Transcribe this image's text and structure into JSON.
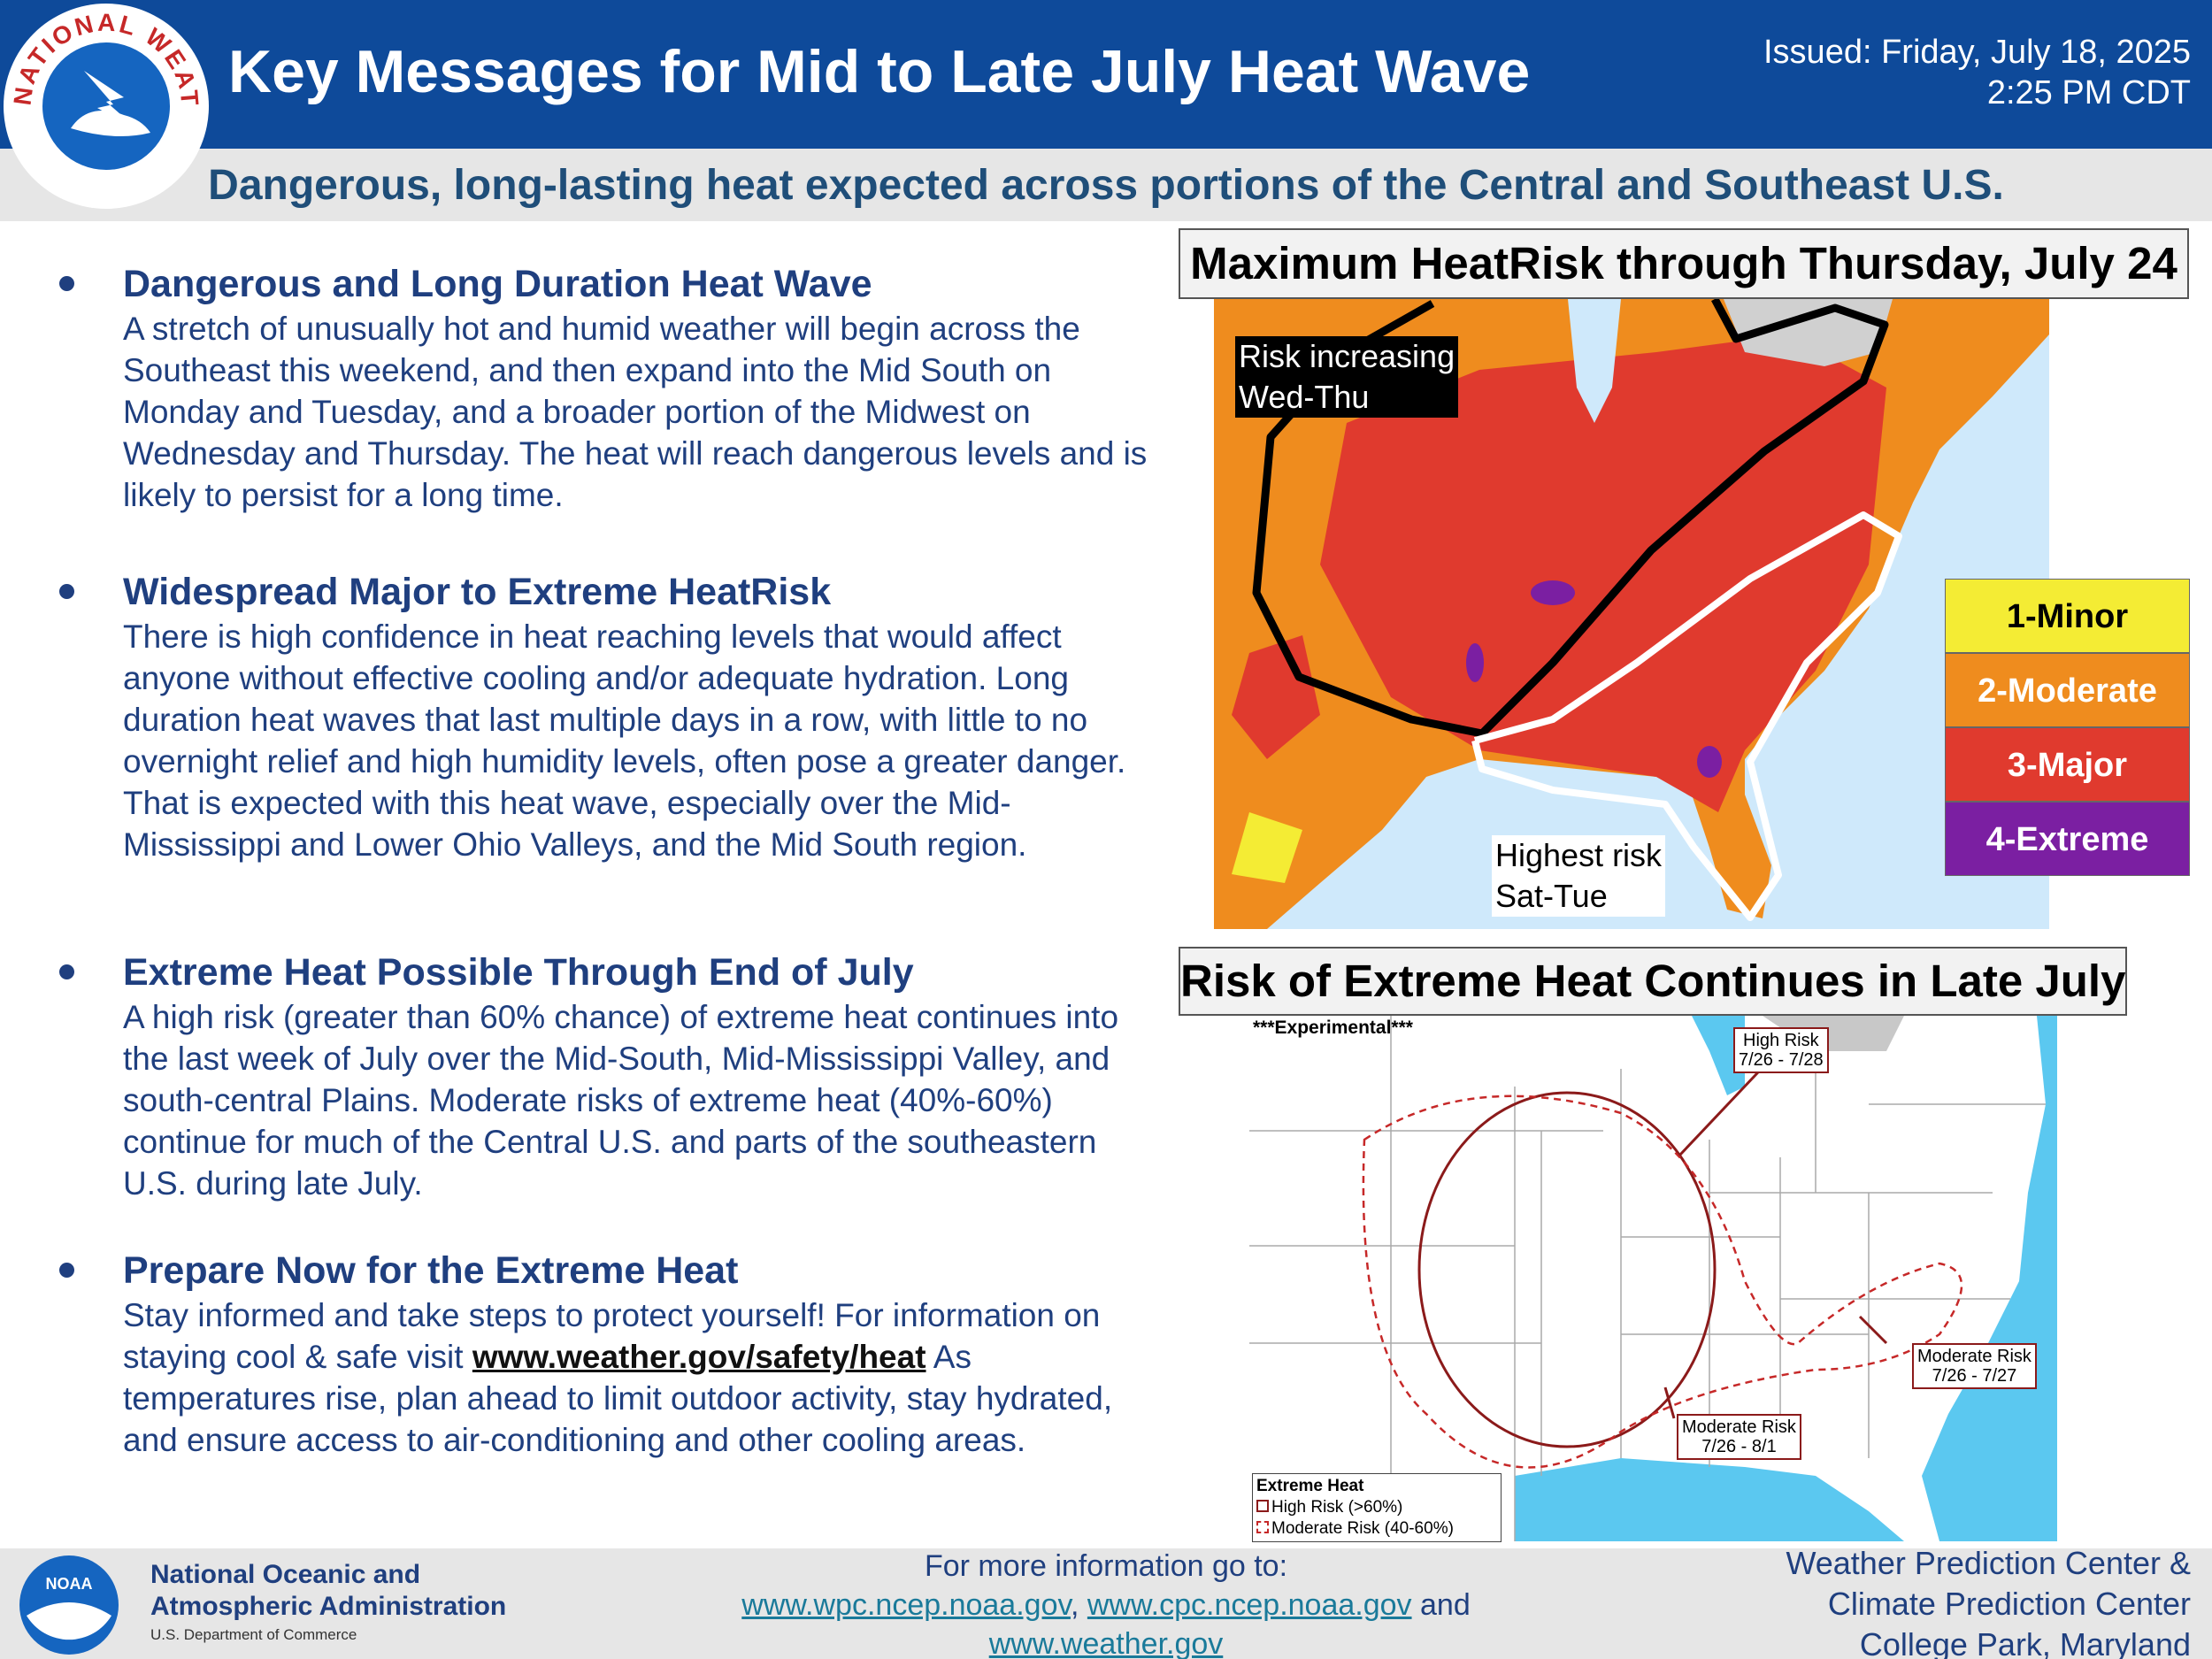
{
  "header": {
    "logo_text": "NATIONAL WEATHER SERVICE",
    "title": "Key Messages for Mid to Late July Heat Wave",
    "issued": [
      "Issued: Friday, July 18, 2025",
      "2:25 PM CDT"
    ],
    "subtitle": "Dangerous, long-lasting heat expected across portions of the Central and Southeast U.S."
  },
  "messages": [
    {
      "heading": "Dangerous and Long Duration Heat Wave",
      "body": "A stretch of unusually hot and humid weather will begin across the Southeast this weekend, and then expand into the Mid South on Monday and Tuesday, and a broader portion of the Midwest on Wednesday and Thursday. The heat will reach dangerous levels and is likely to persist for a long time."
    },
    {
      "heading": "Widespread Major to Extreme HeatRisk",
      "body": "There is high confidence in heat reaching levels that would affect anyone without effective cooling and/or adequate hydration. Long duration heat waves that last multiple days in a row, with little to no overnight relief and high humidity levels, often pose a greater danger. That is expected with this heat wave, especially over the Mid-Mississippi and Lower Ohio Valleys, and the Mid South region."
    },
    {
      "heading": "Extreme Heat Possible Through End of July",
      "body": "A high risk (greater than 60% chance) of extreme heat continues into the last week of July over the Mid-South, Mid-Mississippi Valley, and south-central Plains. Moderate risks of extreme heat (40%-60%) continue for much of the Central U.S. and parts of the southeastern U.S. during late July."
    },
    {
      "heading": "Prepare Now for the Extreme Heat",
      "body_before": "Stay informed and take steps to protect yourself! For information on staying cool & safe visit",
      "link": "www.weather.gov/safety/heat",
      "body_after": "As temperatures rise, plan ahead to limit outdoor activity, stay hydrated, and ensure access to air-conditioning and other cooling areas."
    }
  ],
  "heatrisk_map": {
    "title": "Maximum HeatRisk through Thursday, July 24",
    "annotations": [
      [
        "Risk increasing",
        "Wed-Thu"
      ],
      [
        "Highest risk",
        "Sat-Tue"
      ]
    ],
    "legend": [
      {
        "label": "1-Minor",
        "color": "#f4ec34"
      },
      {
        "label": "2-Moderate",
        "color": "#ef8c1e"
      },
      {
        "label": "3-Major",
        "color": "#e03a2e"
      },
      {
        "label": "4-Extreme",
        "color": "#7b1fa2"
      }
    ]
  },
  "extreme_heat_map": {
    "title": "Risk of Extreme Heat Continues in Late July",
    "label": "***Experimental***",
    "callouts": [
      [
        "High Risk",
        "7/26 - 7/28"
      ],
      [
        "Moderate Risk",
        "7/26 - 7/27"
      ],
      [
        "Moderate Risk",
        "7/26 - 8/1"
      ]
    ],
    "legend": {
      "title": "Extreme Heat",
      "items": [
        "High Risk (>60%)",
        "Moderate Risk (40-60%)"
      ]
    }
  },
  "footer": {
    "noaa": {
      "logo": "NOAA",
      "name": [
        "National Oceanic and",
        "Atmospheric Administration"
      ],
      "department": "U.S. Department of Commerce"
    },
    "info": {
      "lead": "For more information go to:",
      "links": [
        "www.wpc.ncep.noaa.gov",
        "www.cpc.ncep.noaa.gov",
        "www.weather.gov"
      ],
      "separator": ",",
      "conjunction": "and"
    },
    "centers": [
      "Weather Prediction Center &",
      "Climate Prediction Center",
      "College Park, Maryland"
    ]
  }
}
